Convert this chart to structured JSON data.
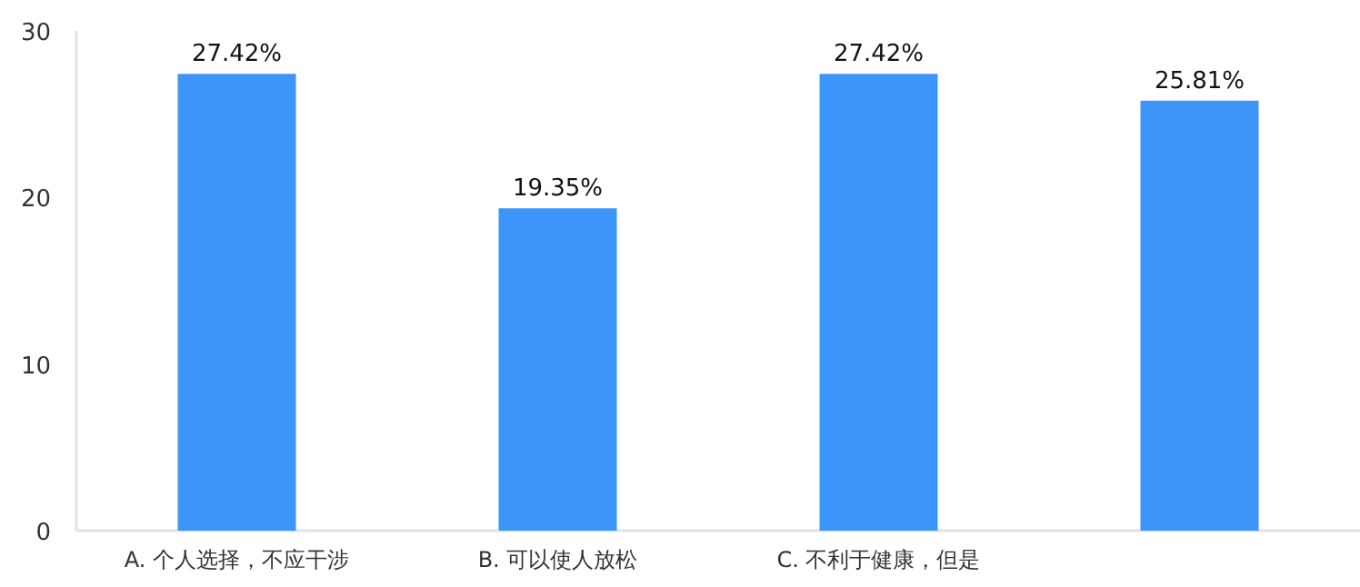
{
  "chart_data": {
    "type": "bar",
    "categories": [
      "A. 个人选择，不应干涉",
      "B. 可以使人放松",
      "C. 不利于健康，但是",
      null
    ],
    "values": [
      27.42,
      19.35,
      27.42,
      25.81
    ],
    "value_labels": [
      "27.42%",
      "19.35%",
      "27.42%",
      "25.81%"
    ],
    "color": "#3d95fa",
    "ylim": [
      0,
      30
    ],
    "yticks": [
      0,
      10,
      20,
      30
    ]
  }
}
